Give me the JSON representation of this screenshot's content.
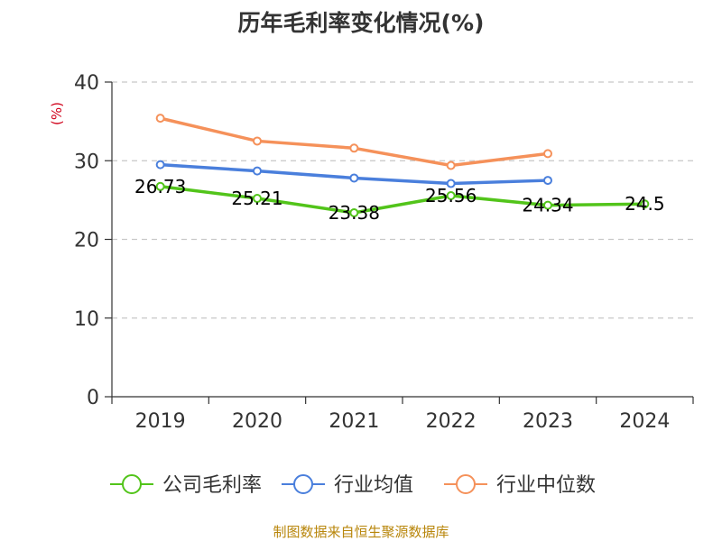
{
  "chart_data": {
    "type": "line",
    "title": "历年毛利率变化情况(%)",
    "ylabel": "(%)",
    "xlabel": "",
    "categories": [
      "2019",
      "2020",
      "2021",
      "2022",
      "2023",
      "2024"
    ],
    "ylim": [
      0,
      40
    ],
    "yticks": [
      "0",
      "10",
      "20",
      "30",
      "40"
    ],
    "grid": true,
    "legend_position": "bottom",
    "series": [
      {
        "name": "公司毛利率",
        "color": "#52c41a",
        "values": [
          26.73,
          25.21,
          23.38,
          25.56,
          24.34,
          24.5
        ],
        "labels": [
          "26.73",
          "25.21",
          "23.38",
          "25.56",
          "24.34",
          "24.5"
        ]
      },
      {
        "name": "行业均值",
        "color": "#4a7fdc",
        "values": [
          29.5,
          28.7,
          27.8,
          27.1,
          27.5,
          null
        ]
      },
      {
        "name": "行业中位数",
        "color": "#f5915a",
        "values": [
          35.4,
          32.5,
          31.6,
          29.4,
          30.9,
          null
        ]
      }
    ]
  },
  "source": "制图数据来自恒生聚源数据库"
}
